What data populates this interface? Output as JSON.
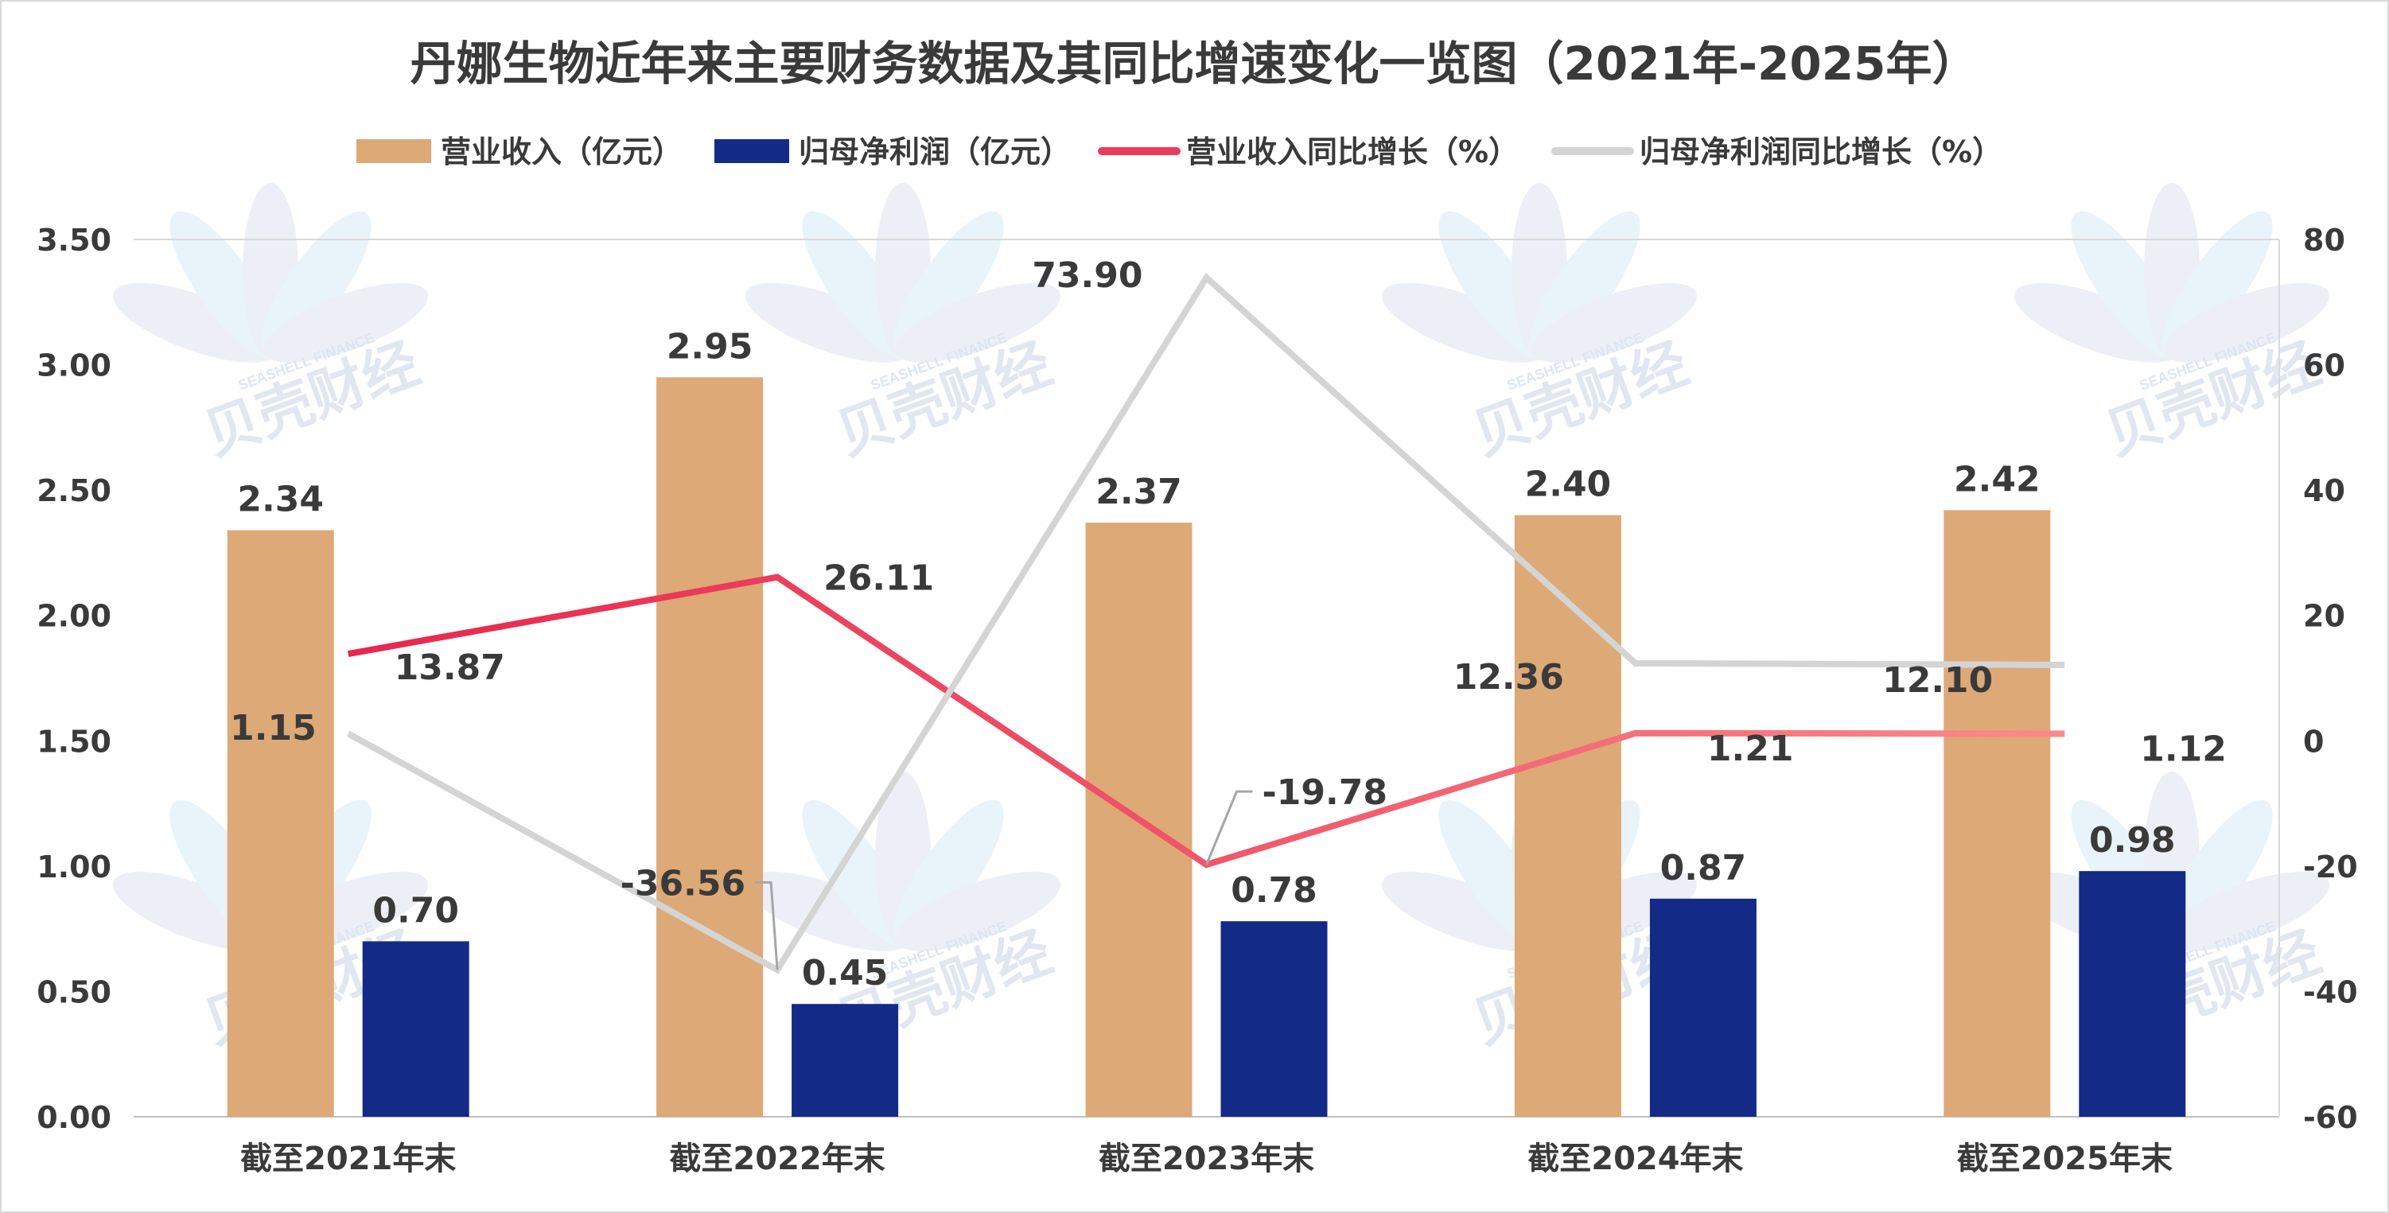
{
  "chart_data": {
    "type": "bar",
    "title": "丹娜生物近年来主要财务数据及其同比增速变化一览图（2021年-2025年）",
    "categories": [
      "截至2021年末",
      "截至2022年末",
      "截至2023年末",
      "截至2024年末",
      "截至2025年末"
    ],
    "left_axis": {
      "ylim": [
        0,
        3.5
      ],
      "ticks": [
        "0.00",
        "0.50",
        "1.00",
        "1.50",
        "2.00",
        "2.50",
        "3.00",
        "3.50"
      ]
    },
    "right_axis": {
      "ylim": [
        -60,
        80
      ],
      "ticks": [
        "-60",
        "-40",
        "-20",
        "0",
        "20",
        "40",
        "60",
        "80"
      ]
    },
    "series": [
      {
        "name": "营业收入（亿元）",
        "type": "bar",
        "axis": "left",
        "color": "#dda977",
        "values": [
          2.34,
          2.95,
          2.37,
          2.4,
          2.42
        ],
        "labels": [
          "2.34",
          "2.95",
          "2.37",
          "2.40",
          "2.42"
        ]
      },
      {
        "name": "归母净利润（亿元）",
        "type": "bar",
        "axis": "left",
        "color": "#142a87",
        "values": [
          0.7,
          0.45,
          0.78,
          0.87,
          0.98
        ],
        "labels": [
          "0.70",
          "0.45",
          "0.78",
          "0.87",
          "0.98"
        ]
      },
      {
        "name": "营业收入同比增长（%）",
        "type": "line",
        "axis": "right",
        "color": "#ee3a5a",
        "values": [
          13.87,
          26.11,
          -19.78,
          1.21,
          1.12
        ],
        "labels": [
          "13.87",
          "26.11",
          "-19.78",
          "1.21",
          "1.12"
        ]
      },
      {
        "name": "归母净利润同比增长（%）",
        "type": "line",
        "axis": "right",
        "color": "#d4d4d4",
        "values": [
          1.15,
          -36.56,
          73.9,
          12.36,
          12.1
        ],
        "labels": [
          "1.15",
          "-36.56",
          "73.90",
          "12.36",
          "12.10"
        ]
      }
    ],
    "legend_position": "top",
    "grid": false
  },
  "watermark": {
    "text": "贝壳财经",
    "subtext": "SEASHELL FINANCE"
  }
}
